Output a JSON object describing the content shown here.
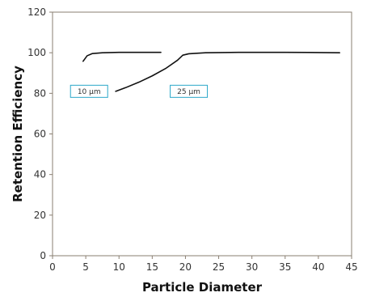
{
  "chart_data": {
    "type": "line",
    "title": "",
    "xlabel": "Particle Diameter",
    "ylabel": "Retention Efficiency",
    "xlim": [
      0,
      45
    ],
    "ylim": [
      0,
      120
    ],
    "xticks": [
      0,
      5,
      10,
      15,
      20,
      25,
      30,
      35,
      40,
      45
    ],
    "yticks": [
      0,
      20,
      40,
      60,
      80,
      100,
      120
    ],
    "grid": false,
    "legend": "none",
    "series": [
      {
        "label": "10 µm",
        "color": "#111111",
        "points": [
          [
            4.6,
            95.8
          ],
          [
            5.2,
            98.5
          ],
          [
            6.0,
            99.6
          ],
          [
            7.5,
            100.0
          ],
          [
            10.0,
            100.2
          ],
          [
            13.0,
            100.2
          ],
          [
            16.3,
            100.2
          ]
        ]
      },
      {
        "label": "25 µm",
        "color": "#111111",
        "points": [
          [
            9.5,
            81.0
          ],
          [
            11.0,
            82.8
          ],
          [
            13.0,
            85.5
          ],
          [
            15.0,
            88.6
          ],
          [
            17.0,
            92.2
          ],
          [
            18.8,
            96.3
          ],
          [
            19.6,
            98.8
          ],
          [
            20.5,
            99.5
          ],
          [
            23.0,
            100.0
          ],
          [
            28.0,
            100.2
          ],
          [
            35.0,
            100.2
          ],
          [
            40.0,
            100.1
          ],
          [
            43.2,
            100.0
          ]
        ]
      }
    ],
    "annotations": [
      {
        "text": "10 µm",
        "x": 5.5,
        "y": 81
      },
      {
        "text": "25 µm",
        "x": 20.5,
        "y": 81
      }
    ]
  },
  "colors": {
    "axis": "#8a7f72",
    "line": "#111111",
    "annotation_border": "#2aa7c9"
  }
}
